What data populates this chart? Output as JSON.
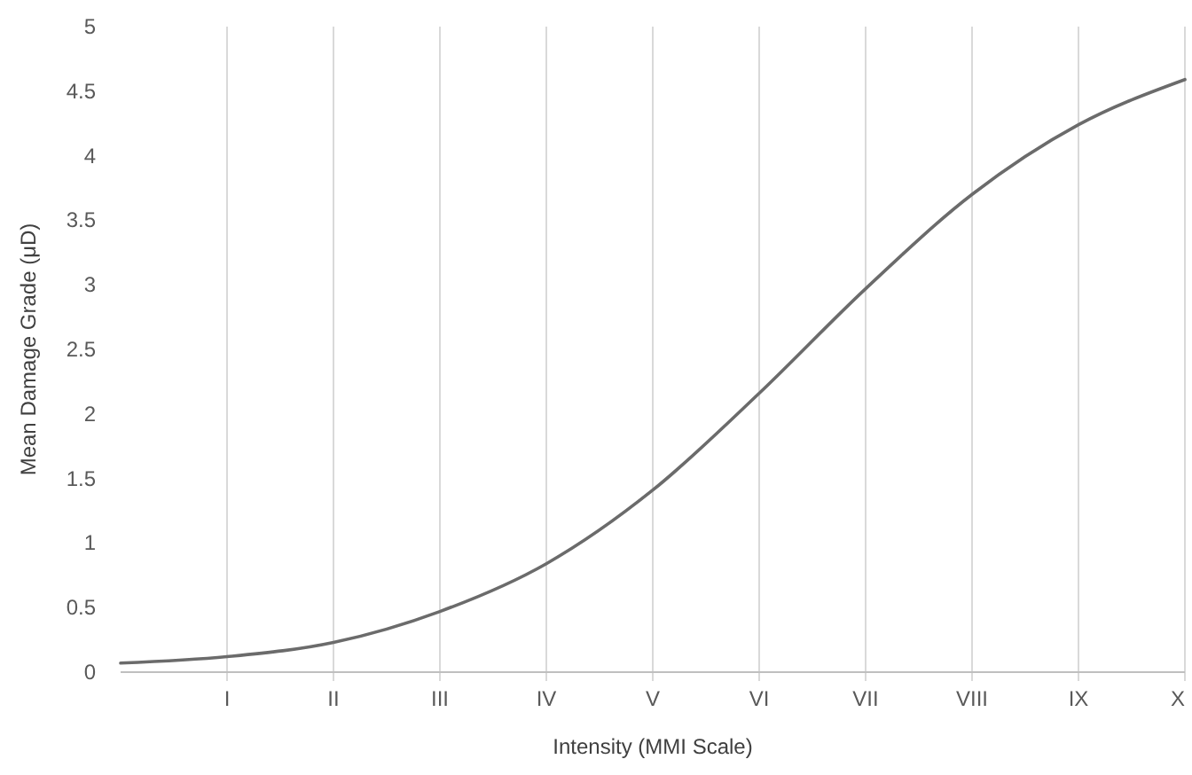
{
  "chart_data": {
    "type": "line",
    "xlabel": "Intensity (MMI Scale)",
    "ylabel": "Mean Damage Grade (μD)",
    "categories": [
      null,
      "I",
      "II",
      "III",
      "IV",
      "V",
      "VI",
      "VII",
      "VIII",
      "IX",
      "X"
    ],
    "series": [
      {
        "color": "#6b6b6b",
        "values": [
          0.07,
          0.12,
          0.23,
          0.47,
          0.84,
          1.41,
          2.16,
          2.97,
          3.7,
          4.24,
          4.59
        ]
      }
    ],
    "ylim": [
      0,
      5
    ],
    "yticks": [
      0,
      0.5,
      1,
      1.5,
      2,
      2.5,
      3,
      3.5,
      4,
      4.5,
      5
    ],
    "grid": "x",
    "marker": "none",
    "line_style": "solid"
  }
}
